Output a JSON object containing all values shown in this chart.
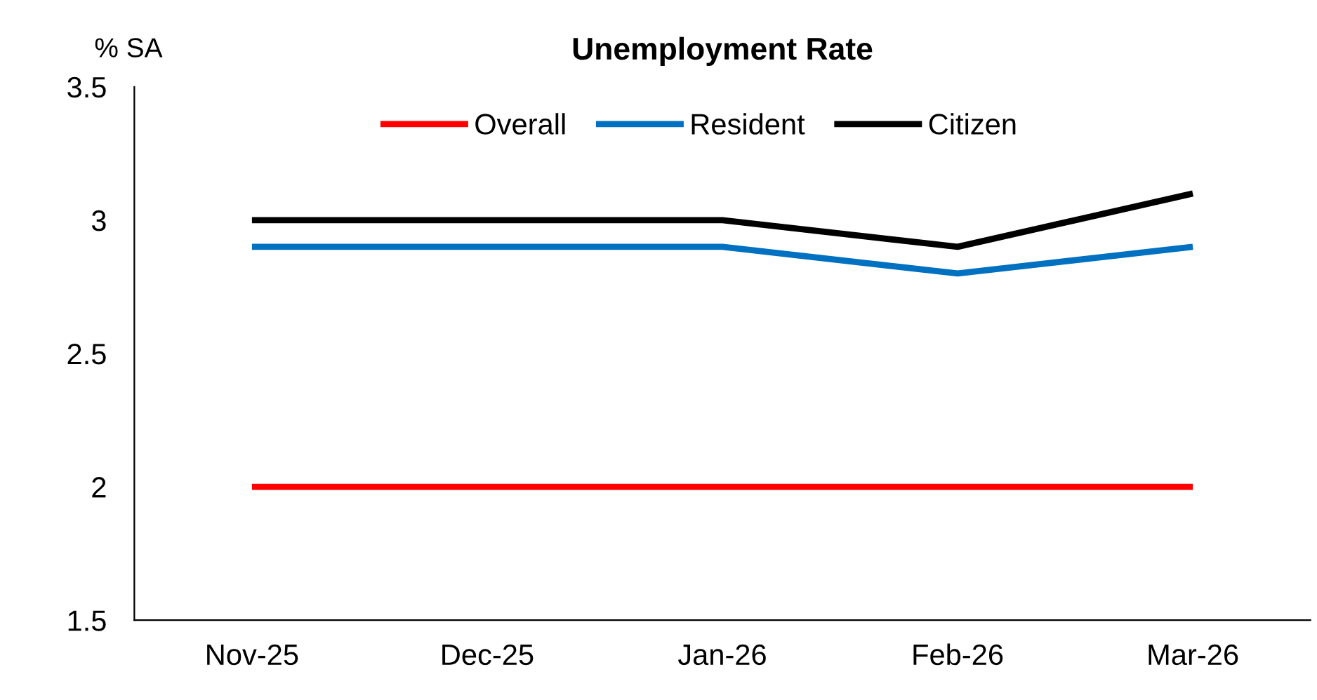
{
  "chart_data": {
    "type": "line",
    "title": "Unemployment Rate",
    "ylabel": "% SA",
    "categories": [
      "Nov-25",
      "Dec-25",
      "Jan-26",
      "Feb-26",
      "Mar-26"
    ],
    "series": [
      {
        "name": "Overall",
        "color": "#ff0000",
        "values": [
          2.0,
          2.0,
          2.0,
          2.0,
          2.0
        ]
      },
      {
        "name": "Resident",
        "color": "#0070c0",
        "values": [
          2.9,
          2.9,
          2.9,
          2.8,
          2.9
        ]
      },
      {
        "name": "Citizen",
        "color": "#000000",
        "values": [
          3.0,
          3.0,
          3.0,
          2.9,
          3.1
        ]
      }
    ],
    "ylim": [
      1.5,
      3.5
    ],
    "yticks": [
      1.5,
      2,
      2.5,
      3,
      3.5
    ],
    "grid": false,
    "legend": "top",
    "marker": "none",
    "line_style": "solid"
  }
}
